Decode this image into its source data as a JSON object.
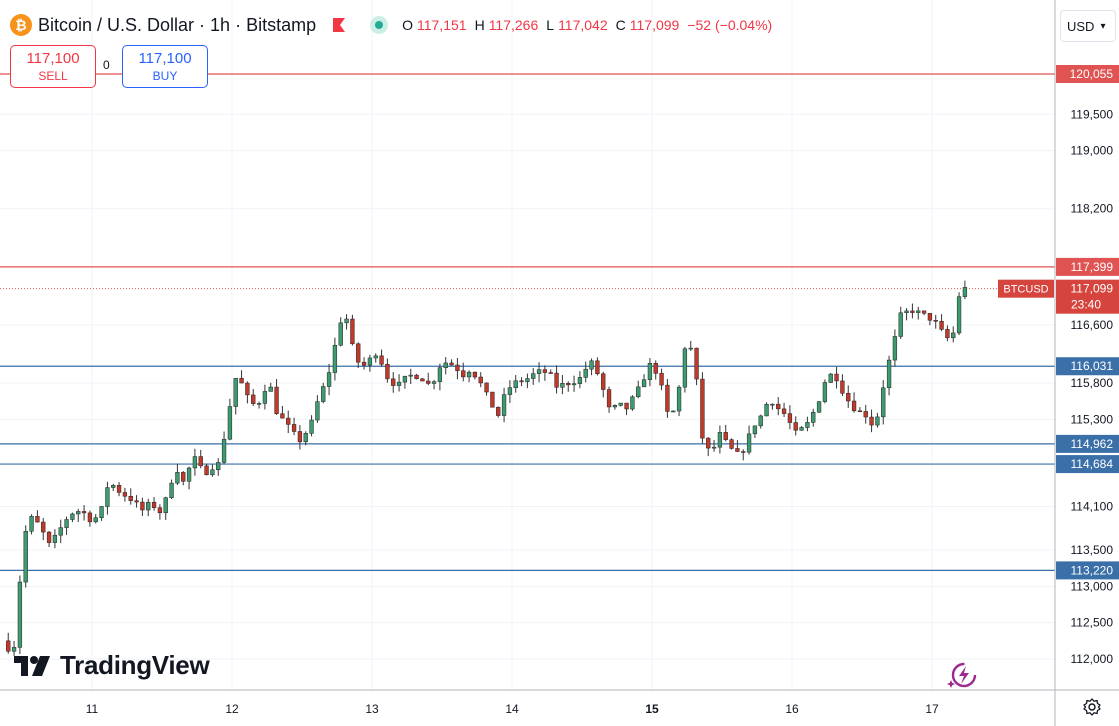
{
  "header": {
    "title": "Bitcoin / U.S. Dollar · 1h · Bitstamp",
    "btc_glyph": "₿",
    "ohlc": {
      "o_label": "O",
      "o_value": "117,151",
      "h_label": "H",
      "h_value": "117,266",
      "l_label": "L",
      "l_value": "117,042",
      "c_label": "C",
      "c_value": "117,099",
      "change": "−52 (−0.04%)"
    },
    "flag_icon": "flag-icon",
    "status_icon": "market-open-dot-icon"
  },
  "trade": {
    "sell_price": "117,100",
    "sell_label": "SELL",
    "buy_price": "117,100",
    "buy_label": "BUY",
    "spread": "0"
  },
  "currency": {
    "label": "USD"
  },
  "branding": {
    "logo_text": "TradingView"
  },
  "colors": {
    "up": "#3e9a6f",
    "down": "#c0392b",
    "resistance": "#e05353",
    "support": "#3a6fa8",
    "grid": "#f0f3fa",
    "axis_text": "#131722"
  },
  "chart_data": {
    "type": "candlestick",
    "symbol": "BTCUSD",
    "timeframe": "1h",
    "yaxis_ticks": [
      112000,
      112500,
      113000,
      113500,
      114100,
      115300,
      115800,
      116600,
      118200,
      119000,
      119500
    ],
    "yaxis_tick_labels": [
      "112,000",
      "112,500",
      "113,000",
      "113,500",
      "114,100",
      "115,300",
      "115,800",
      "116,600",
      "118,200",
      "119,000",
      "119,500"
    ],
    "ylim": [
      111700,
      120500
    ],
    "xaxis_labels": [
      {
        "label": "11",
        "bold": false,
        "day": 11
      },
      {
        "label": "12",
        "bold": false,
        "day": 12
      },
      {
        "label": "13",
        "bold": false,
        "day": 13
      },
      {
        "label": "14",
        "bold": false,
        "day": 14
      },
      {
        "label": "15",
        "bold": true,
        "day": 15
      },
      {
        "label": "16",
        "bold": false,
        "day": 16
      },
      {
        "label": "17",
        "bold": false,
        "day": 17
      }
    ],
    "xlim_days": [
      10.35,
      17.87
    ],
    "levels": [
      {
        "value": 120055,
        "label": "120,055",
        "kind": "resistance"
      },
      {
        "value": 117399,
        "label": "117,399",
        "kind": "resistance"
      },
      {
        "value": 116031,
        "label": "116,031",
        "kind": "support"
      },
      {
        "value": 114962,
        "label": "114,962",
        "kind": "support"
      },
      {
        "value": 114684,
        "label": "114,684",
        "kind": "support"
      },
      {
        "value": 113220,
        "label": "113,220",
        "kind": "support"
      }
    ],
    "current_price": {
      "value": 117099,
      "label": "117,099",
      "symbol_tag": "BTCUSD",
      "countdown": "23:40"
    },
    "anchors": [
      [
        10.36,
        112250
      ],
      [
        10.4,
        112150
      ],
      [
        10.46,
        112200
      ],
      [
        10.5,
        113600
      ],
      [
        10.56,
        113950
      ],
      [
        10.62,
        113850
      ],
      [
        10.7,
        113550
      ],
      [
        10.76,
        113750
      ],
      [
        10.84,
        114000
      ],
      [
        10.92,
        114050
      ],
      [
        11.0,
        113900
      ],
      [
        11.06,
        114000
      ],
      [
        11.12,
        114450
      ],
      [
        11.2,
        114300
      ],
      [
        11.28,
        114200
      ],
      [
        11.36,
        114050
      ],
      [
        11.42,
        114150
      ],
      [
        11.5,
        114000
      ],
      [
        11.55,
        114350
      ],
      [
        11.6,
        114650
      ],
      [
        11.66,
        114400
      ],
      [
        11.72,
        114800
      ],
      [
        11.8,
        114550
      ],
      [
        11.86,
        114650
      ],
      [
        11.92,
        114700
      ],
      [
        11.96,
        115300
      ],
      [
        12.0,
        115600
      ],
      [
        12.04,
        116000
      ],
      [
        12.08,
        115700
      ],
      [
        12.14,
        115500
      ],
      [
        12.2,
        115550
      ],
      [
        12.26,
        115850
      ],
      [
        12.32,
        115400
      ],
      [
        12.4,
        115200
      ],
      [
        12.48,
        115000
      ],
      [
        12.56,
        115200
      ],
      [
        12.62,
        115600
      ],
      [
        12.68,
        115850
      ],
      [
        12.74,
        116350
      ],
      [
        12.8,
        116850
      ],
      [
        12.86,
        116300
      ],
      [
        12.92,
        116000
      ],
      [
        13.0,
        116150
      ],
      [
        13.04,
        116250
      ],
      [
        13.1,
        115900
      ],
      [
        13.18,
        115750
      ],
      [
        13.26,
        115900
      ],
      [
        13.34,
        115900
      ],
      [
        13.42,
        115750
      ],
      [
        13.5,
        116100
      ],
      [
        13.58,
        116050
      ],
      [
        13.66,
        115900
      ],
      [
        13.7,
        116000
      ],
      [
        13.76,
        115850
      ],
      [
        13.84,
        115550
      ],
      [
        13.9,
        115350
      ],
      [
        13.96,
        115700
      ],
      [
        14.02,
        115800
      ],
      [
        14.1,
        115850
      ],
      [
        14.18,
        115950
      ],
      [
        14.26,
        115950
      ],
      [
        14.32,
        115750
      ],
      [
        14.4,
        115800
      ],
      [
        14.48,
        115850
      ],
      [
        14.56,
        116100
      ],
      [
        14.62,
        115900
      ],
      [
        14.7,
        115400
      ],
      [
        14.76,
        115500
      ],
      [
        14.82,
        115450
      ],
      [
        14.9,
        115700
      ],
      [
        14.96,
        115950
      ],
      [
        15.0,
        116100
      ],
      [
        15.06,
        115800
      ],
      [
        15.12,
        115300
      ],
      [
        15.18,
        115500
      ],
      [
        15.22,
        116200
      ],
      [
        15.26,
        116450
      ],
      [
        15.32,
        115800
      ],
      [
        15.36,
        115050
      ],
      [
        15.42,
        114800
      ],
      [
        15.48,
        115100
      ],
      [
        15.54,
        114950
      ],
      [
        15.6,
        114800
      ],
      [
        15.66,
        114900
      ],
      [
        15.72,
        115200
      ],
      [
        15.78,
        115350
      ],
      [
        15.84,
        115600
      ],
      [
        15.9,
        115450
      ],
      [
        15.96,
        115350
      ],
      [
        16.02,
        115100
      ],
      [
        16.1,
        115200
      ],
      [
        16.18,
        115500
      ],
      [
        16.24,
        115850
      ],
      [
        16.3,
        115950
      ],
      [
        16.36,
        115700
      ],
      [
        16.42,
        115500
      ],
      [
        16.48,
        115400
      ],
      [
        16.54,
        115350
      ],
      [
        16.58,
        115200
      ],
      [
        16.62,
        115400
      ],
      [
        16.66,
        115850
      ],
      [
        16.72,
        116300
      ],
      [
        16.78,
        116750
      ],
      [
        16.86,
        116800
      ],
      [
        16.92,
        116750
      ],
      [
        16.98,
        116700
      ],
      [
        17.04,
        116600
      ],
      [
        17.1,
        116400
      ],
      [
        17.16,
        116500
      ],
      [
        17.2,
        117100
      ],
      [
        17.26,
        117099
      ]
    ]
  }
}
